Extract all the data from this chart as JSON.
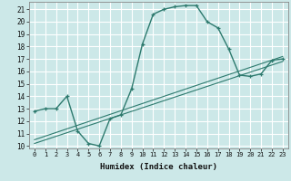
{
  "xlabel": "Humidex (Indice chaleur)",
  "bg_color": "#cce8e8",
  "grid_color": "#ffffff",
  "line_color": "#2d7a6e",
  "xlim": [
    -0.5,
    23.5
  ],
  "ylim": [
    9.8,
    21.6
  ],
  "yticks": [
    10,
    11,
    12,
    13,
    14,
    15,
    16,
    17,
    18,
    19,
    20,
    21
  ],
  "xticks": [
    0,
    1,
    2,
    3,
    4,
    5,
    6,
    7,
    8,
    9,
    10,
    11,
    12,
    13,
    14,
    15,
    16,
    17,
    18,
    19,
    20,
    21,
    22,
    23
  ],
  "curve1_x": [
    0,
    1,
    2,
    3,
    4,
    5,
    6,
    7,
    8,
    9,
    10,
    11,
    12,
    13,
    14,
    15,
    16,
    17,
    18,
    19,
    20,
    21,
    22,
    23
  ],
  "curve1_y": [
    12.8,
    13.0,
    13.0,
    14.0,
    11.2,
    10.2,
    10.0,
    12.2,
    12.5,
    14.6,
    18.2,
    20.6,
    21.0,
    21.2,
    21.3,
    21.3,
    20.0,
    19.5,
    17.8,
    15.7,
    15.6,
    15.8,
    16.9,
    17.0
  ],
  "trend1_x": [
    0,
    23
  ],
  "trend1_y": [
    10.5,
    17.2
  ],
  "trend2_x": [
    0,
    23
  ],
  "trend2_y": [
    10.2,
    16.8
  ]
}
